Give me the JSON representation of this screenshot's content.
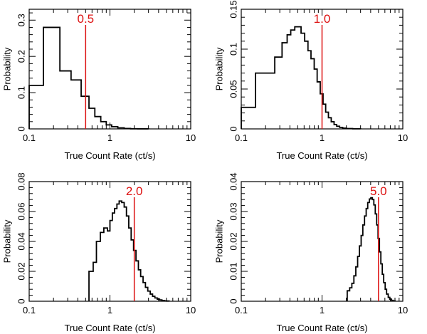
{
  "chart_data": [
    {
      "type": "step-histogram",
      "xscale": "log",
      "xlim": [
        0.1,
        10
      ],
      "ylim": [
        0,
        0.33
      ],
      "xticks": [
        {
          "v": 0.1,
          "label": "0.1"
        },
        {
          "v": 1,
          "label": "1"
        },
        {
          "v": 10,
          "label": "10"
        }
      ],
      "yticks": [
        {
          "v": 0,
          "label": "0"
        },
        {
          "v": 0.1,
          "label": "0.1"
        },
        {
          "v": 0.2,
          "label": "0.2"
        },
        {
          "v": 0.3,
          "label": "0.3"
        }
      ],
      "xlabel": "True Count Rate (ct/s)",
      "ylabel": "Probability",
      "marker": {
        "value": 0.5,
        "label": "0.5",
        "color": "#dd1111"
      },
      "steps": [
        [
          0.1,
          0.12
        ],
        [
          0.15,
          0.28
        ],
        [
          0.24,
          0.16
        ],
        [
          0.33,
          0.135
        ],
        [
          0.44,
          0.09
        ],
        [
          0.55,
          0.057
        ],
        [
          0.65,
          0.034
        ],
        [
          0.77,
          0.02
        ],
        [
          0.9,
          0.011
        ],
        [
          1.05,
          0.006
        ],
        [
          1.25,
          0.003
        ],
        [
          1.5,
          0.0012
        ],
        [
          1.8,
          0.0004
        ],
        [
          2.2,
          0.0001
        ],
        [
          3.0,
          0
        ]
      ]
    },
    {
      "type": "step-histogram",
      "xscale": "log",
      "xlim": [
        0.1,
        10
      ],
      "ylim": [
        0,
        0.15
      ],
      "xticks": [
        {
          "v": 0.1,
          "label": "0.1"
        },
        {
          "v": 1,
          "label": "1"
        },
        {
          "v": 10,
          "label": "10"
        }
      ],
      "yticks": [
        {
          "v": 0,
          "label": "0"
        },
        {
          "v": 0.05,
          "label": "0.05"
        },
        {
          "v": 0.1,
          "label": "0.1"
        },
        {
          "v": 0.15,
          "label": "0.15"
        }
      ],
      "xlabel": "True Count Rate (ct/s)",
      "ylabel": "Probability",
      "marker": {
        "value": 1.0,
        "label": "1.0",
        "color": "#dd1111"
      },
      "steps": [
        [
          0.1,
          0.027
        ],
        [
          0.15,
          0.07
        ],
        [
          0.26,
          0.09
        ],
        [
          0.32,
          0.108
        ],
        [
          0.37,
          0.118
        ],
        [
          0.41,
          0.124
        ],
        [
          0.46,
          0.128
        ],
        [
          0.55,
          0.12
        ],
        [
          0.61,
          0.11
        ],
        [
          0.67,
          0.098
        ],
        [
          0.73,
          0.088
        ],
        [
          0.8,
          0.075
        ],
        [
          0.87,
          0.059
        ],
        [
          0.95,
          0.044
        ],
        [
          1.03,
          0.031
        ],
        [
          1.11,
          0.021
        ],
        [
          1.2,
          0.014
        ],
        [
          1.3,
          0.009
        ],
        [
          1.41,
          0.0055
        ],
        [
          1.52,
          0.0033
        ],
        [
          1.65,
          0.0019
        ],
        [
          1.8,
          0.001
        ],
        [
          2.0,
          0.0004
        ],
        [
          2.4,
          0.0001
        ],
        [
          3.0,
          0
        ]
      ]
    },
    {
      "type": "step-histogram",
      "xscale": "log",
      "xlim": [
        0.1,
        10
      ],
      "ylim": [
        0,
        0.08
      ],
      "xticks": [
        {
          "v": 0.1,
          "label": "0.1"
        },
        {
          "v": 1,
          "label": "1"
        },
        {
          "v": 10,
          "label": "10"
        }
      ],
      "yticks": [
        {
          "v": 0,
          "label": "0"
        },
        {
          "v": 0.02,
          "label": "0.02"
        },
        {
          "v": 0.04,
          "label": "0.04"
        },
        {
          "v": 0.06,
          "label": "0.06"
        },
        {
          "v": 0.08,
          "label": "0.08"
        }
      ],
      "xlabel": "True Count Rate (ct/s)",
      "ylabel": "Probability",
      "marker": {
        "value": 2.0,
        "label": "2.0",
        "color": "#dd1111"
      },
      "steps": [
        [
          0.55,
          0.02
        ],
        [
          0.62,
          0.026
        ],
        [
          0.68,
          0.04
        ],
        [
          0.76,
          0.046
        ],
        [
          0.84,
          0.049
        ],
        [
          0.93,
          0.047
        ],
        [
          1.0,
          0.054
        ],
        [
          1.07,
          0.059
        ],
        [
          1.14,
          0.062
        ],
        [
          1.22,
          0.065
        ],
        [
          1.3,
          0.067
        ],
        [
          1.4,
          0.066
        ],
        [
          1.5,
          0.063
        ],
        [
          1.6,
          0.057
        ],
        [
          1.71,
          0.049
        ],
        [
          1.83,
          0.041
        ],
        [
          1.96,
          0.034
        ],
        [
          2.1,
          0.027
        ],
        [
          2.25,
          0.021
        ],
        [
          2.4,
          0.0165
        ],
        [
          2.57,
          0.0125
        ],
        [
          2.75,
          0.0093
        ],
        [
          2.94,
          0.0068
        ],
        [
          3.15,
          0.0048
        ],
        [
          3.37,
          0.0033
        ],
        [
          3.6,
          0.0022
        ],
        [
          3.85,
          0.0014
        ],
        [
          4.12,
          0.0009
        ],
        [
          4.4,
          0.0005
        ],
        [
          4.7,
          0.0003
        ],
        [
          5.0,
          0.00015
        ],
        [
          5.4,
          0
        ]
      ]
    },
    {
      "type": "step-histogram",
      "xscale": "log",
      "xlim": [
        0.1,
        10
      ],
      "ylim": [
        0,
        0.04
      ],
      "xticks": [
        {
          "v": 0.1,
          "label": "0.1"
        },
        {
          "v": 1,
          "label": "1"
        },
        {
          "v": 10,
          "label": "10"
        }
      ],
      "yticks": [
        {
          "v": 0,
          "label": "0"
        },
        {
          "v": 0.01,
          "label": "0.01"
        },
        {
          "v": 0.02,
          "label": "0.02"
        },
        {
          "v": 0.03,
          "label": "0.03"
        },
        {
          "v": 0.04,
          "label": "0.04"
        }
      ],
      "xlabel": "True Count Rate (ct/s)",
      "ylabel": "Probability",
      "marker": {
        "value": 5.0,
        "label": "5.0",
        "color": "#dd1111"
      },
      "steps": [
        [
          2.05,
          0.0035
        ],
        [
          2.2,
          0.0045
        ],
        [
          2.34,
          0.006
        ],
        [
          2.48,
          0.0085
        ],
        [
          2.62,
          0.0115
        ],
        [
          2.76,
          0.015
        ],
        [
          2.9,
          0.0185
        ],
        [
          3.05,
          0.022
        ],
        [
          3.2,
          0.0255
        ],
        [
          3.36,
          0.0285
        ],
        [
          3.52,
          0.031
        ],
        [
          3.68,
          0.033
        ],
        [
          3.85,
          0.0342
        ],
        [
          4.02,
          0.0346
        ],
        [
          4.2,
          0.034
        ],
        [
          4.38,
          0.0322
        ],
        [
          4.56,
          0.0292
        ],
        [
          4.75,
          0.0255
        ],
        [
          4.94,
          0.021
        ],
        [
          5.14,
          0.0165
        ],
        [
          5.35,
          0.0125
        ],
        [
          5.57,
          0.009
        ],
        [
          5.8,
          0.0062
        ],
        [
          6.05,
          0.004
        ],
        [
          6.3,
          0.0024
        ],
        [
          6.6,
          0.0013
        ],
        [
          6.9,
          0.0007
        ],
        [
          7.25,
          0.0003
        ],
        [
          7.6,
          0.0001
        ],
        [
          8.0,
          0
        ]
      ]
    }
  ]
}
